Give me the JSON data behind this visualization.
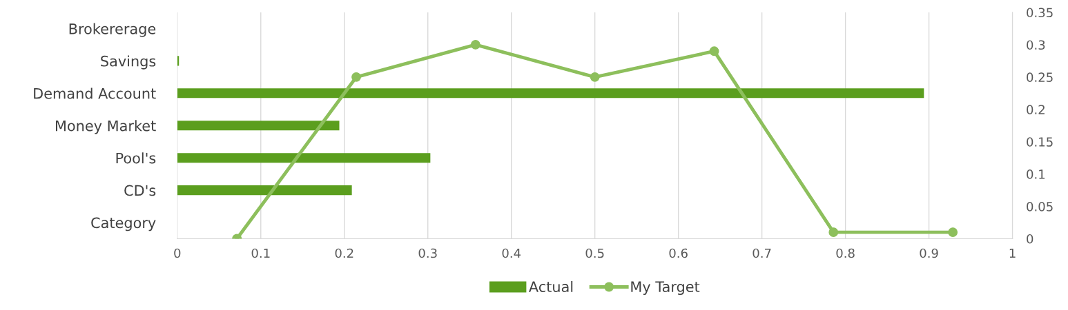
{
  "chart_data": [
    {
      "type": "bar",
      "orientation": "horizontal",
      "categories": [
        "Brokererage",
        "Savings",
        "Demand Account",
        "Money Market",
        "Pool's",
        "CD's",
        "Category"
      ],
      "series": [
        {
          "name": "Actual",
          "color": "#5b9e1e",
          "values": [
            0,
            0.002,
            0.894,
            0.194,
            0.303,
            0.209,
            0
          ]
        }
      ],
      "xlim": [
        0,
        1
      ],
      "xticks": [
        0,
        0.1,
        0.2,
        0.3,
        0.4,
        0.5,
        0.6,
        0.7,
        0.8,
        0.9,
        1
      ],
      "grid": "x",
      "legend": "bottom"
    },
    {
      "type": "line",
      "marker": "circle",
      "series": [
        {
          "name": "My Target",
          "color": "#8dbf5c",
          "x": [
            0.0714,
            0.2143,
            0.3571,
            0.5,
            0.6429,
            0.7857,
            0.9286
          ],
          "values": [
            0,
            0.25,
            0.3,
            0.25,
            0.29,
            0.01,
            0.01
          ]
        }
      ],
      "xlim": [
        0,
        1
      ],
      "ylim": [
        0,
        0.35
      ],
      "yticks": [
        0,
        0.05,
        0.1,
        0.15,
        0.2,
        0.25,
        0.3,
        0.35
      ],
      "tick_labels": "y",
      "legend": "bottom"
    }
  ]
}
